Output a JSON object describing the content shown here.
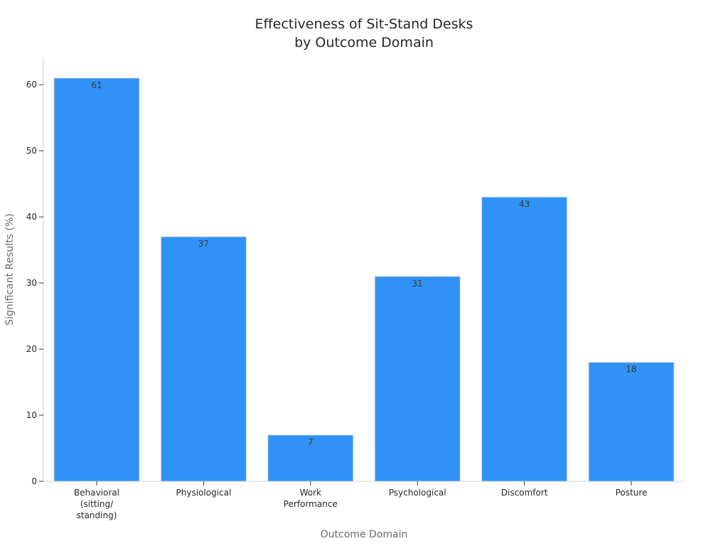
{
  "chart_data": {
    "type": "bar",
    "title_lines": [
      "Effectiveness of Sit-Stand Desks",
      "by Outcome Domain"
    ],
    "xlabel": "Outcome Domain",
    "ylabel": "Significant Results (%)",
    "categories": [
      [
        "Behavioral",
        "(sitting/",
        "standing)"
      ],
      [
        "Physiological"
      ],
      [
        "Work",
        "Performance"
      ],
      [
        "Psychological"
      ],
      [
        "Discomfort"
      ],
      [
        "Posture"
      ]
    ],
    "values": [
      61,
      37,
      7,
      31,
      43,
      18
    ],
    "data_labels": [
      "61",
      "37",
      "7",
      "31",
      "43",
      "18"
    ],
    "yticks": [
      0,
      10,
      20,
      30,
      40,
      50,
      60
    ],
    "ylim": [
      0,
      64.1
    ],
    "grid": false,
    "bar_color": "#3092f6",
    "bar_edge_color": "#d9d9d9",
    "axis_color": "#cccccc"
  }
}
